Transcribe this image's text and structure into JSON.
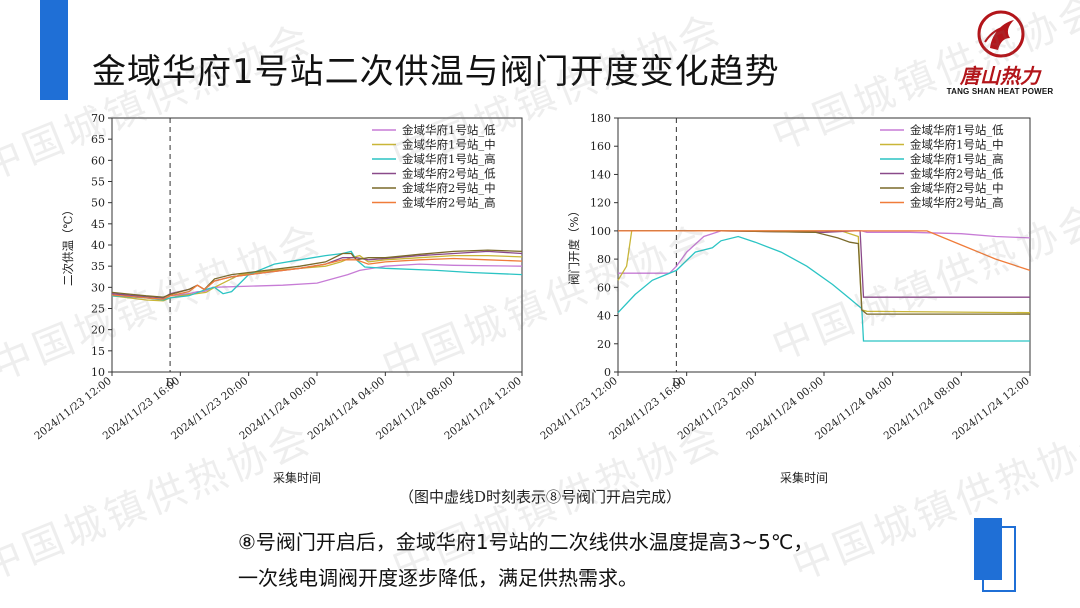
{
  "title": "金域华府1号站二次供温与阀门开度变化趋势",
  "logo": {
    "cn": "唐山热力",
    "en": "TANG SHAN HEAT POWER"
  },
  "watermark": "中国城镇供热协会",
  "caption": "（图中虚线D时刻表示⑧号阀门开启完成）",
  "conclusion": {
    "line1": "⑧号阀门开启后，金域华府1号站的二次线供水温度提高3~5℃，",
    "line2": "一次线电调阀开度逐步降低，满足供热需求。"
  },
  "colors": {
    "accent": "#1f6fd6",
    "brand_red": "#b3151a"
  },
  "chart_data": [
    {
      "type": "line",
      "xlabel": "采集时间",
      "ylabel": "二次供温（℃）",
      "ylim": [
        10,
        70
      ],
      "yticks": [
        "10",
        "15",
        "20",
        "25",
        "30",
        "35",
        "40",
        "45",
        "50",
        "55",
        "60",
        "65",
        "70"
      ],
      "xticks": [
        "2024/11/23 12:00",
        "2024/11/23 16:00",
        "2024/11/23 20:00",
        "2024/11/24 00:00",
        "2024/11/24 04:00",
        "2024/11/24 08:00",
        "2024/11/24 12:00"
      ],
      "xrange": [
        0,
        24
      ],
      "marker": {
        "label": "D",
        "x": 3.4
      },
      "legend_position": "top-right",
      "series": [
        {
          "name": "金域华府1号站_低",
          "color": "#c77cd6",
          "points": [
            [
              0,
              28.5
            ],
            [
              2,
              27.5
            ],
            [
              3,
              27
            ],
            [
              3.4,
              28
            ],
            [
              4.5,
              28.5
            ],
            [
              5,
              29
            ],
            [
              5.4,
              29
            ],
            [
              5.9,
              30
            ],
            [
              10,
              30.5
            ],
            [
              12,
              31
            ],
            [
              13.8,
              33
            ],
            [
              14.5,
              34
            ],
            [
              16,
              35
            ],
            [
              18,
              35.5
            ],
            [
              20,
              35.2
            ],
            [
              24,
              35
            ]
          ]
        },
        {
          "name": "金域华府1号站_中",
          "color": "#c9b637",
          "points": [
            [
              0,
              28
            ],
            [
              2,
              27
            ],
            [
              3,
              26.8
            ],
            [
              3.4,
              27.5
            ],
            [
              4,
              28
            ],
            [
              5.5,
              28.8
            ],
            [
              6,
              30
            ],
            [
              7.5,
              33
            ],
            [
              9,
              33.8
            ],
            [
              11,
              34.5
            ],
            [
              12.5,
              35
            ],
            [
              13.4,
              36
            ],
            [
              14,
              37
            ],
            [
              14.5,
              37.5
            ],
            [
              15,
              36
            ],
            [
              16,
              36.5
            ],
            [
              18,
              37
            ],
            [
              20,
              37.5
            ],
            [
              22,
              37.5
            ],
            [
              24,
              37.2
            ]
          ]
        },
        {
          "name": "金域华府1号站_高",
          "color": "#2bc4c4",
          "points": [
            [
              0,
              28
            ],
            [
              2,
              27.5
            ],
            [
              3,
              27
            ],
            [
              3.4,
              27.5
            ],
            [
              4.5,
              28
            ],
            [
              5.5,
              29.5
            ],
            [
              6,
              30
            ],
            [
              6.5,
              28.5
            ],
            [
              7,
              29
            ],
            [
              8,
              33
            ],
            [
              9.5,
              35.5
            ],
            [
              11,
              36.5
            ],
            [
              12.5,
              37.5
            ],
            [
              13.5,
              38
            ],
            [
              14,
              38.5
            ],
            [
              14.3,
              36.5
            ],
            [
              14.8,
              34.8
            ],
            [
              16,
              34.5
            ],
            [
              19,
              34
            ],
            [
              21,
              33.5
            ],
            [
              24,
              33
            ]
          ]
        },
        {
          "name": "金域华府2号站_低",
          "color": "#8a4a8a",
          "points": [
            [
              0,
              28.5
            ],
            [
              2,
              27.8
            ],
            [
              3,
              27.5
            ],
            [
              3.4,
              28.5
            ],
            [
              4.5,
              29.5
            ],
            [
              5,
              30.5
            ],
            [
              5.4,
              29.5
            ],
            [
              6,
              31.5
            ],
            [
              7,
              32.5
            ],
            [
              9,
              33.5
            ],
            [
              11,
              34.5
            ],
            [
              12.5,
              35.5
            ],
            [
              13.5,
              37
            ],
            [
              14.3,
              37
            ],
            [
              15,
              36.5
            ],
            [
              16,
              36.8
            ],
            [
              18,
              37.5
            ],
            [
              20,
              38
            ],
            [
              22,
              38.5
            ],
            [
              24,
              38
            ]
          ]
        },
        {
          "name": "金域华府2号站_中",
          "color": "#7a6a2a",
          "points": [
            [
              0,
              28.8
            ],
            [
              2,
              28
            ],
            [
              3,
              27.7
            ],
            [
              3.4,
              28.3
            ],
            [
              4.5,
              29.5
            ],
            [
              5,
              30.5
            ],
            [
              5.4,
              29.5
            ],
            [
              6,
              32
            ],
            [
              7,
              33
            ],
            [
              9,
              34
            ],
            [
              11,
              35
            ],
            [
              12.5,
              36
            ],
            [
              13.5,
              38
            ],
            [
              14,
              38
            ],
            [
              14.3,
              36.5
            ],
            [
              15,
              37
            ],
            [
              16,
              37
            ],
            [
              18,
              37.8
            ],
            [
              20,
              38.5
            ],
            [
              22,
              38.8
            ],
            [
              24,
              38.5
            ]
          ]
        },
        {
          "name": "金域华府2号站_高",
          "color": "#f07c3a",
          "points": [
            [
              0,
              28.2
            ],
            [
              2,
              27.5
            ],
            [
              3,
              27.2
            ],
            [
              3.4,
              28
            ],
            [
              4.5,
              29
            ],
            [
              5,
              30.5
            ],
            [
              5.4,
              29.5
            ],
            [
              6,
              31.5
            ],
            [
              7,
              32.5
            ],
            [
              9,
              33.5
            ],
            [
              11,
              34.5
            ],
            [
              12.5,
              35.5
            ],
            [
              13.5,
              36.5
            ],
            [
              14.3,
              36.5
            ],
            [
              15,
              35.5
            ],
            [
              16,
              36
            ],
            [
              18,
              36.5
            ],
            [
              20,
              36.8
            ],
            [
              22,
              36.5
            ],
            [
              24,
              36.2
            ]
          ]
        }
      ]
    },
    {
      "type": "line",
      "xlabel": "采集时间",
      "ylabel": "阀门开度（%）",
      "ylim": [
        0,
        180
      ],
      "yticks": [
        "0",
        "20",
        "40",
        "60",
        "80",
        "100",
        "120",
        "140",
        "160",
        "180"
      ],
      "xticks": [
        "2024/11/23 12:00",
        "2024/11/23 16:00",
        "2024/11/23 20:00",
        "2024/11/24 00:00",
        "2024/11/24 04:00",
        "2024/11/24 08:00",
        "2024/11/24 12:00"
      ],
      "xrange": [
        0,
        24
      ],
      "marker": {
        "label": "D",
        "x": 3.4
      },
      "legend_position": "top-right",
      "series": [
        {
          "name": "金域华府1号站_低",
          "color": "#c77cd6",
          "points": [
            [
              0,
              70
            ],
            [
              3,
              70
            ],
            [
              3.4,
              75
            ],
            [
              4,
              85
            ],
            [
              5,
              96
            ],
            [
              6,
              100
            ],
            [
              10,
              100
            ],
            [
              13.7,
              100
            ],
            [
              14.2,
              100
            ],
            [
              14.5,
              99
            ],
            [
              17,
              99
            ],
            [
              20,
              98
            ],
            [
              22,
              96
            ],
            [
              24,
              95
            ]
          ]
        },
        {
          "name": "金域华府1号站_中",
          "color": "#c9b637",
          "points": [
            [
              0,
              65
            ],
            [
              0.5,
              75
            ],
            [
              0.8,
              100
            ],
            [
              13,
              100
            ],
            [
              14,
              96
            ],
            [
              14.2,
              44
            ],
            [
              14.5,
              43
            ],
            [
              24,
              42
            ]
          ]
        },
        {
          "name": "金域华府1号站_高",
          "color": "#2bc4c4",
          "points": [
            [
              0,
              42
            ],
            [
              1,
              55
            ],
            [
              2,
              65
            ],
            [
              3.4,
              72
            ],
            [
              4.5,
              85
            ],
            [
              5.5,
              88
            ],
            [
              6,
              93
            ],
            [
              7,
              96
            ],
            [
              8,
              92
            ],
            [
              9.5,
              85
            ],
            [
              11,
              75
            ],
            [
              12.5,
              62
            ],
            [
              13.5,
              52
            ],
            [
              14,
              47
            ],
            [
              14.2,
              45
            ],
            [
              14.3,
              22
            ],
            [
              24,
              22
            ]
          ]
        },
        {
          "name": "金域华府2号站_低",
          "color": "#8a4a8a",
          "points": [
            [
              0,
              100
            ],
            [
              3,
              100
            ],
            [
              6,
              100
            ],
            [
              12,
              99
            ],
            [
              13.8,
              100
            ],
            [
              14.1,
              100
            ],
            [
              14.3,
              53
            ],
            [
              24,
              53
            ]
          ]
        },
        {
          "name": "金域华府2号站_中",
          "color": "#7a6a2a",
          "points": [
            [
              0,
              100
            ],
            [
              3,
              100
            ],
            [
              6,
              100
            ],
            [
              11.5,
              99
            ],
            [
              12.8,
              95
            ],
            [
              13.5,
              92
            ],
            [
              14,
              91
            ],
            [
              14.2,
              44
            ],
            [
              14.5,
              41
            ],
            [
              24,
              41
            ]
          ]
        },
        {
          "name": "金域华府2号站_高",
          "color": "#f07c3a",
          "points": [
            [
              0,
              100
            ],
            [
              6,
              100
            ],
            [
              12,
              100
            ],
            [
              13.8,
              100
            ],
            [
              14.2,
              100
            ],
            [
              14.5,
              100
            ],
            [
              18,
              100
            ],
            [
              20,
              90
            ],
            [
              22,
              80
            ],
            [
              24,
              72
            ]
          ]
        }
      ]
    }
  ]
}
